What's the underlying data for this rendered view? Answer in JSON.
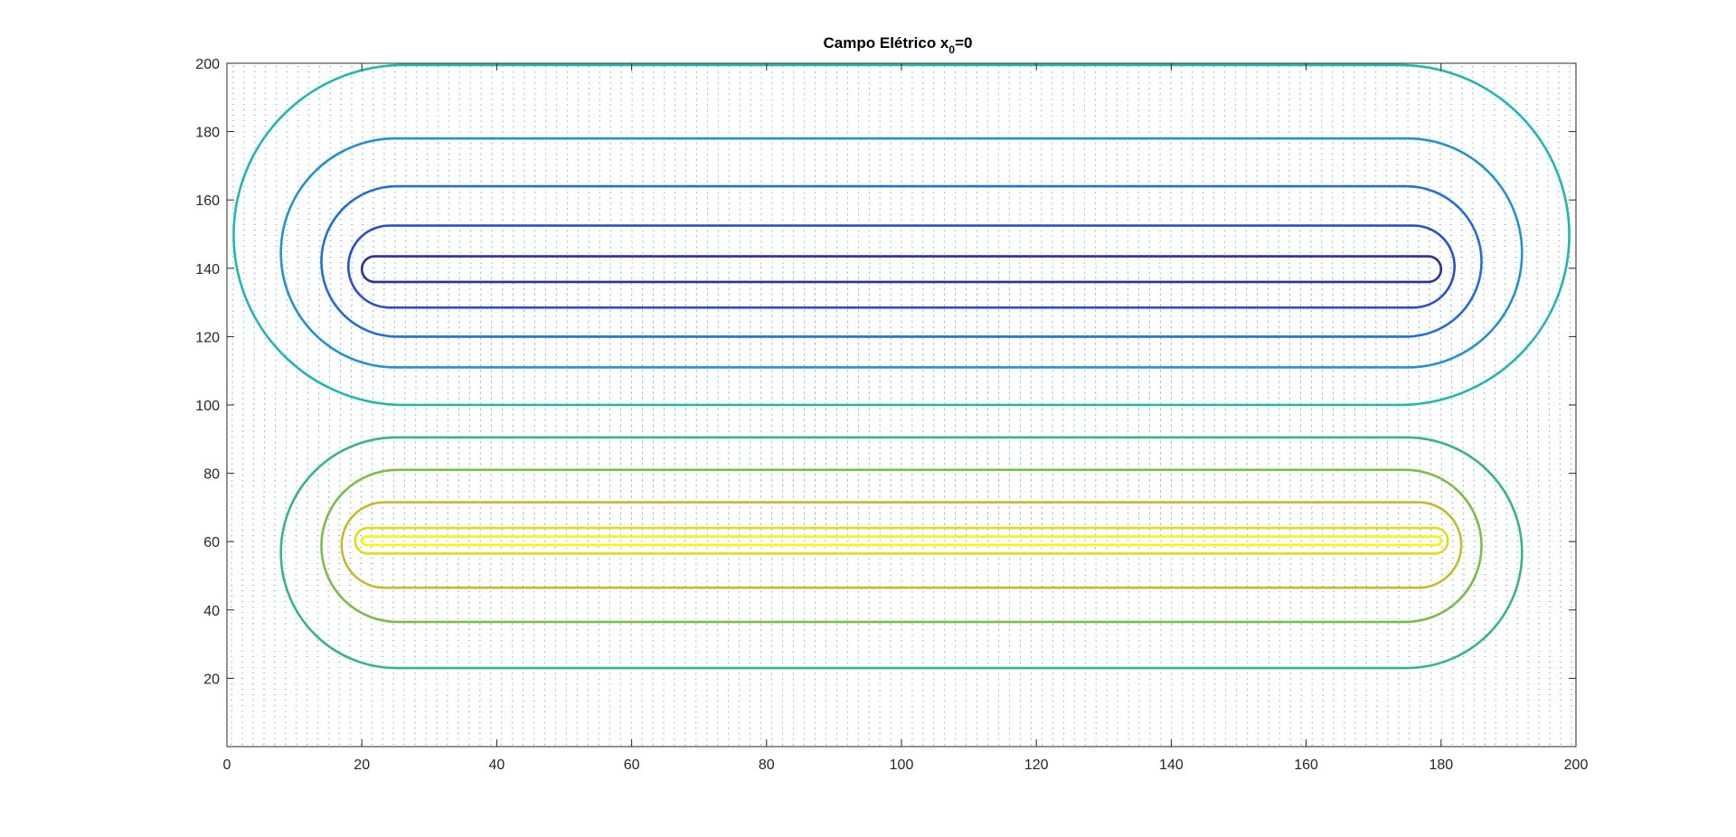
{
  "chart_data": {
    "type": "contour",
    "title": {
      "main": "Campo Elétrico x",
      "subscript": "0",
      "suffix": "=0"
    },
    "xlim": [
      0,
      200
    ],
    "ylim": [
      0,
      200
    ],
    "x_ticks": [
      0,
      20,
      40,
      60,
      80,
      100,
      120,
      140,
      160,
      180,
      200
    ],
    "y_ticks": [
      20,
      40,
      60,
      80,
      100,
      120,
      140,
      160,
      180,
      200
    ],
    "grid": false,
    "box": true,
    "overlay": "quiver",
    "quiver_color": "#2b83c4",
    "charges": [
      {
        "name": "top-plate",
        "x_start": 20,
        "x_end": 180,
        "y": 140
      },
      {
        "name": "bottom-plate",
        "x_start": 20,
        "x_end": 180,
        "y": 60
      }
    ],
    "contours": [
      {
        "group": "top",
        "cx": 100,
        "cy": 140,
        "x_min": 1,
        "x_max": 199,
        "y_min": 100,
        "y_max": 199.5,
        "color": "#1fb7b0"
      },
      {
        "group": "top",
        "cx": 100,
        "cy": 140,
        "x_min": 8,
        "x_max": 192,
        "y_min": 111,
        "y_max": 178,
        "color": "#1f93d0"
      },
      {
        "group": "top",
        "cx": 100,
        "cy": 140,
        "x_min": 14,
        "x_max": 186,
        "y_min": 120,
        "y_max": 164,
        "color": "#1f6fd8"
      },
      {
        "group": "top",
        "cx": 100,
        "cy": 140,
        "x_min": 18,
        "x_max": 182,
        "y_min": 128.5,
        "y_max": 152.5,
        "color": "#2a4fd0"
      },
      {
        "group": "top",
        "cx": 100,
        "cy": 140,
        "x_min": 20,
        "x_max": 180,
        "y_min": 136,
        "y_max": 143.5,
        "color": "#2b2f9a"
      },
      {
        "group": "bottom",
        "cx": 100,
        "cy": 60,
        "x_min": 8,
        "x_max": 192,
        "y_min": 23,
        "y_max": 90.5,
        "color": "#36b487"
      },
      {
        "group": "bottom",
        "cx": 100,
        "cy": 60,
        "x_min": 14,
        "x_max": 186,
        "y_min": 36.5,
        "y_max": 81,
        "color": "#7cbd4a"
      },
      {
        "group": "bottom",
        "cx": 100,
        "cy": 60,
        "x_min": 17,
        "x_max": 183,
        "y_min": 46.5,
        "y_max": 71.5,
        "color": "#c4bb2b"
      },
      {
        "group": "bottom",
        "cx": 100,
        "cy": 60,
        "x_min": 19,
        "x_max": 181,
        "y_min": 56.5,
        "y_max": 64,
        "color": "#e8d81c"
      },
      {
        "group": "bottom",
        "cx": 100,
        "cy": 60,
        "x_min": 20,
        "x_max": 180,
        "y_min": 59,
        "y_max": 61.5,
        "color": "#f7f411"
      }
    ]
  }
}
